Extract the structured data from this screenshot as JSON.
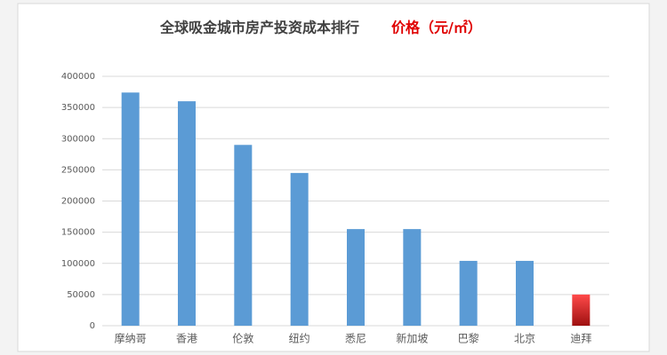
{
  "chart_data": {
    "type": "bar",
    "title": "全球吸金城市房产投资成本排行",
    "subtitle": "价格（元/㎡）",
    "categories": [
      "摩纳哥",
      "香港",
      "伦敦",
      "纽约",
      "悉尼",
      "新加坡",
      "巴黎",
      "北京",
      "迪拜"
    ],
    "values": [
      374000,
      360000,
      290000,
      245000,
      155000,
      155000,
      104000,
      104000,
      50000
    ],
    "colors": [
      "#5b9bd5",
      "#5b9bd5",
      "#5b9bd5",
      "#5b9bd5",
      "#5b9bd5",
      "#5b9bd5",
      "#5b9bd5",
      "#5b9bd5",
      "#e8262a"
    ],
    "ylim": [
      0,
      400000
    ],
    "yticks": [
      0,
      50000,
      100000,
      150000,
      200000,
      250000,
      300000,
      350000,
      400000
    ],
    "grid": true
  }
}
